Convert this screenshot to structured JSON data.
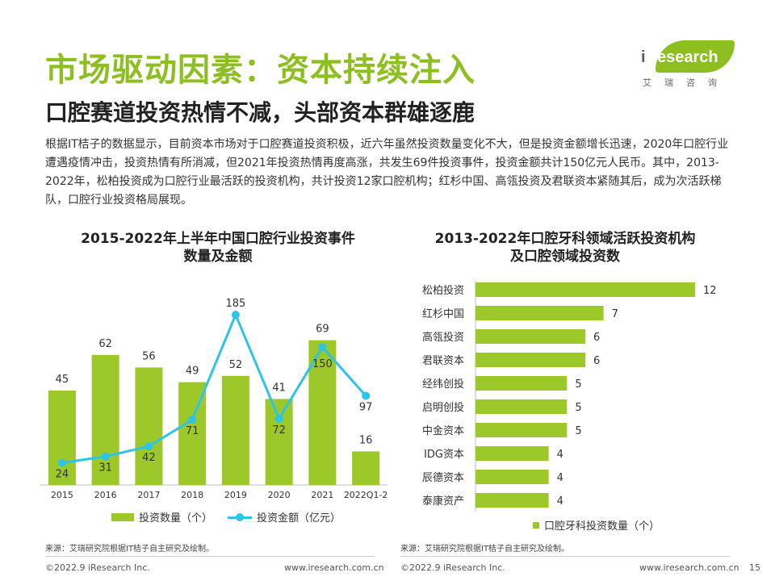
{
  "header": {
    "title": "市场驱动因素：资本持续注入",
    "subtitle": "口腔赛道投资热情不减，头部资本群雄逐鹿",
    "body": "根据IT桔子的数据显示，目前资本市场对于口腔赛道投资积极，近六年虽然投资数量变化不大，但是投资金额增长迅速，2020年口腔行业遭遇疫情冲击，投资热情有所消减，但2021年投资热情再度高涨，共发生69件投资事件，投资金额共计150亿元人民币。其中，2013-2022年，松柏投资成为口腔行业最活跃的投资机构，共计投资12家口腔机构；红杉中国、高瓴投资及君联资本紧随其后，成为次活跃梯队，口腔行业投资格局展现。"
  },
  "logo": {
    "brand": "Research",
    "brand_prefix": "i",
    "cn": "艾瑞咨询"
  },
  "chart_data": [
    {
      "type": "bar",
      "title": "2015-2022年上半年中国口腔行业投资事件数量及金额",
      "categories": [
        "2015",
        "2016",
        "2017",
        "2018",
        "2019",
        "2020",
        "2021",
        "2022Q1-2"
      ],
      "series": [
        {
          "name": "投资数量（个）",
          "type": "bar",
          "values": [
            45,
            62,
            56,
            49,
            52,
            41,
            69,
            16
          ],
          "color": "#9dc82a"
        },
        {
          "name": "投资金额（亿元）",
          "type": "line",
          "values": [
            24,
            31,
            42,
            71,
            185,
            72,
            150,
            97
          ],
          "color": "#2ec4e6"
        }
      ],
      "ylim": [
        0,
        100
      ],
      "ylim_secondary": [
        0,
        215
      ],
      "grid": false,
      "legend": "bottom"
    },
    {
      "type": "bar",
      "orientation": "horizontal",
      "title": "2013-2022年口腔牙科领域活跃投资机构及口腔领域投资数",
      "categories": [
        "松柏投资",
        "红杉中国",
        "高瓴投资",
        "君联资本",
        "经纬创投",
        "启明创投",
        "中金资本",
        "IDG资本",
        "辰德资本",
        "泰康资产"
      ],
      "series": [
        {
          "name": "口腔牙科投资数量（个）",
          "values": [
            12,
            7,
            6,
            6,
            5,
            5,
            5,
            4,
            4,
            4
          ],
          "color": "#9dc82a"
        }
      ],
      "xlim": [
        0,
        12
      ],
      "grid": false,
      "legend": "bottom"
    }
  ],
  "chart1": {
    "title_line1": "2015-2022年上半年中国口腔行业投资事件",
    "title_line2": "数量及金额",
    "legend_bar": "投资数量（个）",
    "legend_line": "投资金额（亿元）"
  },
  "chart2": {
    "title_line1": "2013-2022年口腔牙科领域活跃投资机构",
    "title_line2": "及口腔领域投资数",
    "legend": "口腔牙科投资数量（个）"
  },
  "source": "来源：艾瑞研究院根据IT桔子自主研究及绘制。",
  "footer": {
    "copyright": "©2022.9 iResearch Inc.",
    "url": "www.iresearch.com.cn",
    "page": "15"
  }
}
